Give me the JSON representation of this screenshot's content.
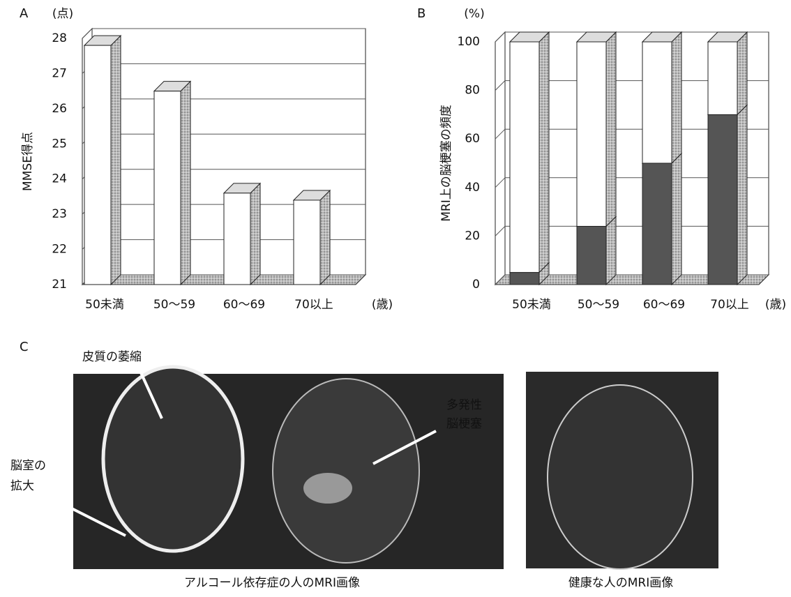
{
  "chart_data": [
    {
      "type": "bar",
      "panel": "A",
      "y_unit": "(点)",
      "ylabel": "MMSE得点",
      "x_unit": "(歳)",
      "categories": [
        "50未満",
        "50～59",
        "60～69",
        "70以上"
      ],
      "values": [
        27.8,
        26.5,
        23.6,
        23.4
      ],
      "color": "#ffffff",
      "ylim": [
        21,
        28
      ],
      "yticks": [
        21,
        22,
        23,
        24,
        25,
        26,
        27,
        28
      ],
      "grid": true
    },
    {
      "type": "bar",
      "panel": "B",
      "y_unit": "(%)",
      "ylabel": "MRI上の脳梗塞の頻度",
      "x_unit": "(歳)",
      "categories": [
        "50未満",
        "50～59",
        "60～69",
        "70以上"
      ],
      "stacked": true,
      "series": [
        {
          "color": "#555555",
          "values": [
            5,
            24,
            50,
            70
          ]
        },
        {
          "color": "#ffffff",
          "values": [
            95,
            76,
            50,
            30
          ]
        }
      ],
      "ylim": [
        0,
        100
      ],
      "yticks": [
        0,
        20,
        40,
        60,
        80,
        100
      ],
      "grid": true
    }
  ],
  "panel_c": {
    "label": "C",
    "annotations": [
      "皮質の萎縮",
      "多発性",
      "脳梗塞",
      "脳室の",
      "拡大"
    ],
    "captions": [
      "アルコール依存症の人のMRI画像",
      "健康な人のMRI画像"
    ]
  }
}
